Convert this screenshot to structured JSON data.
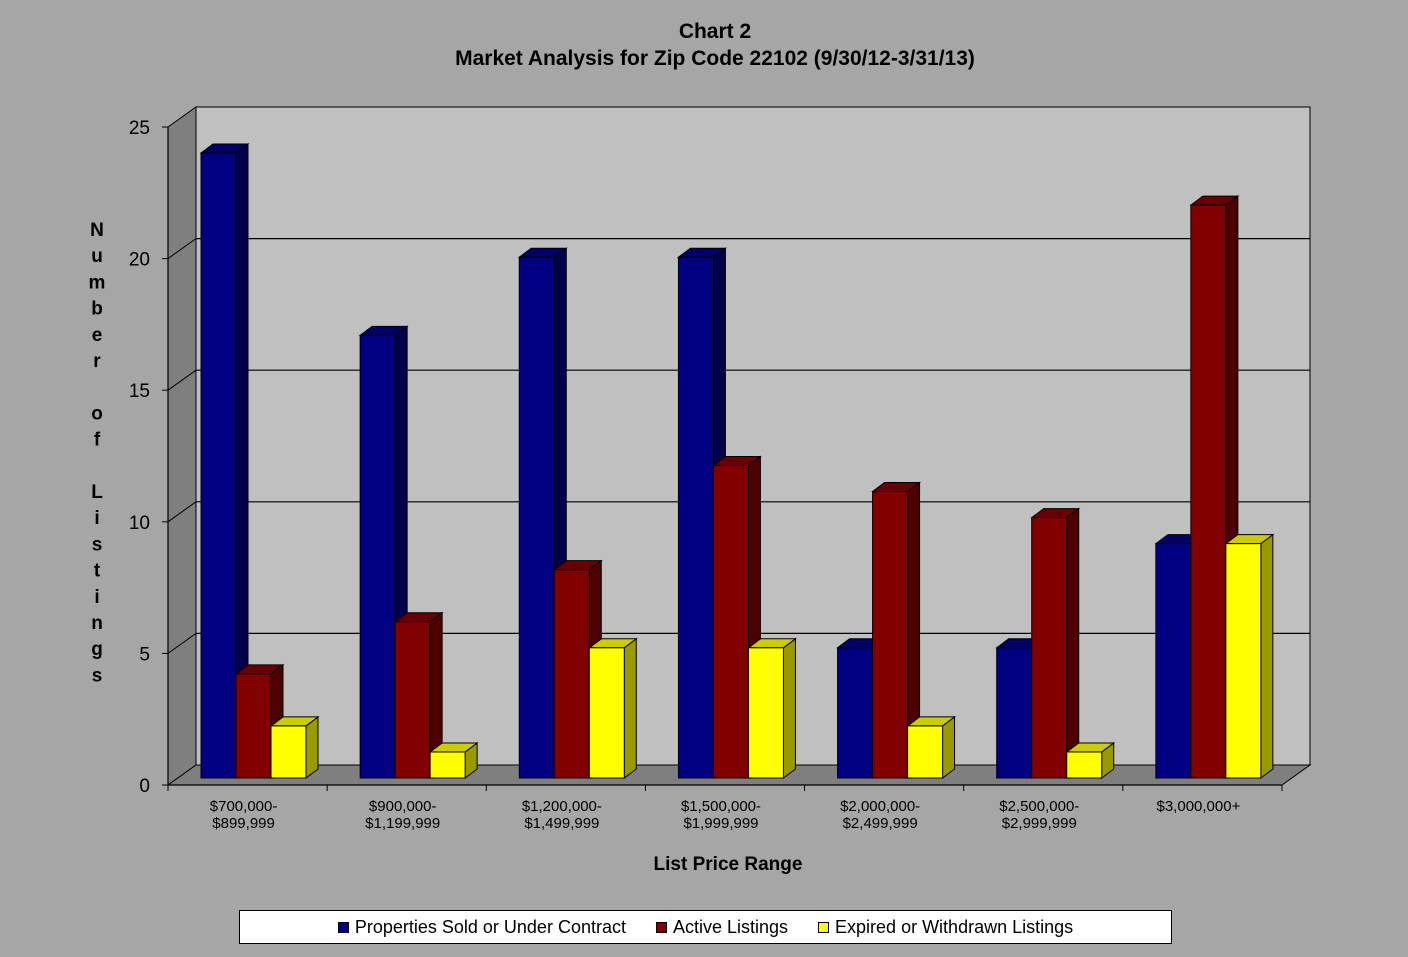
{
  "chart_data": {
    "type": "bar",
    "title": "Chart 2",
    "subtitle": "Market Analysis for Zip Code 22102 (9/30/12-3/31/13)",
    "xlabel": "List Price Range",
    "ylabel": "Number of Listings",
    "ylabel_chars": [
      "N",
      "u",
      "m",
      "b",
      "e",
      "r",
      "",
      "o",
      "f",
      "",
      "L",
      "i",
      "s",
      "t",
      "i",
      "n",
      "g",
      "s"
    ],
    "ylim": [
      0,
      25
    ],
    "yticks": [
      0,
      5,
      10,
      15,
      20,
      25
    ],
    "grid": true,
    "legend_position": "bottom",
    "categories": [
      [
        "$700,000-",
        "$899,999"
      ],
      [
        "$900,000-",
        "$1,199,999"
      ],
      [
        "$1,200,000-",
        "$1,499,999"
      ],
      [
        "$1,500,000-",
        "$1,999,999"
      ],
      [
        "$2,000,000-",
        "$2,499,999"
      ],
      [
        "$2,500,000-",
        "$2,999,999"
      ],
      [
        "$3,000,000+"
      ]
    ],
    "series": [
      {
        "name": "Properties Sold or Under Contract",
        "color": "#000080",
        "values": [
          24,
          17,
          20,
          20,
          5,
          5,
          9
        ]
      },
      {
        "name": "Active Listings",
        "color": "#800000",
        "values": [
          4,
          6,
          8,
          12,
          11,
          10,
          22
        ]
      },
      {
        "name": "Expired or Withdrawn Listings",
        "color": "#ffff00",
        "values": [
          2,
          1,
          5,
          5,
          2,
          1,
          9
        ]
      }
    ]
  }
}
